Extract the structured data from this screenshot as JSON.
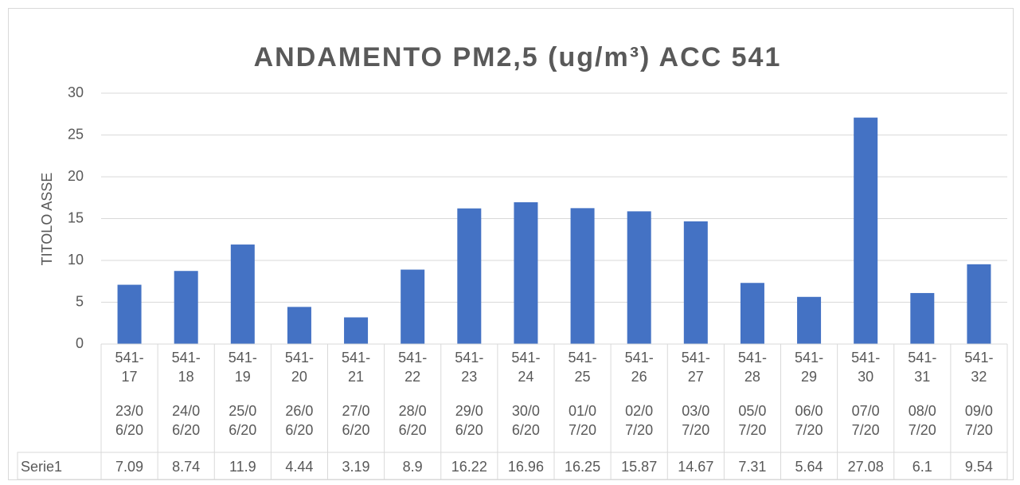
{
  "chart_data": {
    "type": "bar",
    "title": "ANDAMENTO PM2,5 (ug/m³) ACC 541",
    "y_label": "TITOLO ASSE",
    "series_name": "Serie1",
    "categories": [
      "541-17",
      "541-18",
      "541-19",
      "541-20",
      "541-21",
      "541-22",
      "541-23",
      "541-24",
      "541-25",
      "541-26",
      "541-27",
      "541-28",
      "541-29",
      "541-30",
      "541-31",
      "541-32"
    ],
    "dates": [
      "23/06/20",
      "24/06/20",
      "25/06/20",
      "26/06/20",
      "27/06/20",
      "28/06/20",
      "29/06/20",
      "30/06/20",
      "01/07/20",
      "02/07/20",
      "03/07/20",
      "05/07/20",
      "06/07/20",
      "07/07/20",
      "08/07/20",
      "09/07/20"
    ],
    "values": [
      7.09,
      8.74,
      11.9,
      4.44,
      3.19,
      8.9,
      16.22,
      16.96,
      16.25,
      15.87,
      14.67,
      7.31,
      5.64,
      27.08,
      6.1,
      9.54
    ],
    "color": "#4472c4",
    "ylim": [
      0,
      30
    ],
    "yticks": [
      0,
      5,
      10,
      15,
      20,
      25,
      30
    ],
    "grid": true
  }
}
